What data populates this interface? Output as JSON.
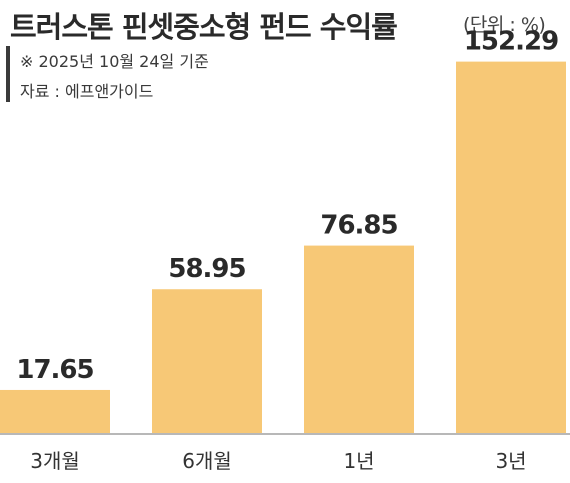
{
  "header": {
    "title": "트러스톤 핀셋중소형 펀드 수익률",
    "unit": "(단위 : %)",
    "notes": [
      "※ 2025년 10월 24일 기준",
      "자료 : 에프앤가이드"
    ]
  },
  "colors": {
    "bar": "#f7c876",
    "text": "#2a2a2a",
    "axis": "#b8b8b8"
  },
  "chart_data": {
    "type": "bar",
    "title": "트러스톤 핀셋중소형 펀드 수익률",
    "unit": "%",
    "categories": [
      "3개월",
      "6개월",
      "1년",
      "3년"
    ],
    "values": [
      17.65,
      58.95,
      76.85,
      152.29
    ],
    "value_labels": [
      "17.65",
      "58.95",
      "76.85",
      "152.29"
    ],
    "ylim": [
      0,
      155
    ],
    "grid": false,
    "legend": "none"
  }
}
